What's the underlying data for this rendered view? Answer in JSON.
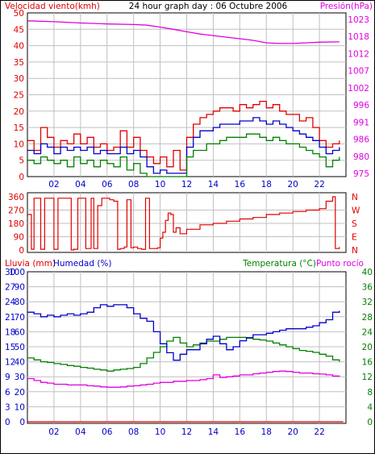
{
  "chart_data": [
    {
      "type": "line",
      "title": "24 hour graph day : 06 Octubre 2006",
      "ylabel_left": "Velocidad viento(kmh)",
      "ylabel_right": "Presión(hPa)",
      "x_ticks": [
        "02",
        "04",
        "06",
        "08",
        "10",
        "12",
        "14",
        "16",
        "18",
        "20",
        "22"
      ],
      "ylim_left": [
        0,
        50
      ],
      "ylim_right": [
        975,
        1027
      ],
      "y_ticks_left": [
        "0",
        "5",
        "10",
        "15",
        "20",
        "25",
        "30",
        "35",
        "40",
        "45",
        "50"
      ],
      "y_ticks_right": [
        "975",
        "980",
        "986",
        "991",
        "996",
        "1002",
        "1007",
        "1012",
        "1018",
        "1023"
      ],
      "grid": true,
      "colors": {
        "gust": "#e00000",
        "wind": "#0000c8",
        "min_wind": "#008000",
        "pressure": "#e000e0",
        "left_axis": "#e00000",
        "right_axis": "#e000e0"
      },
      "series": [
        {
          "name": "Presión(hPa)",
          "axis": "right",
          "x": [
            0,
            2,
            4,
            6,
            8,
            9,
            10,
            11,
            12,
            13,
            14,
            15,
            16,
            17,
            18,
            19,
            20,
            21,
            22,
            23.5
          ],
          "values": [
            1024.5,
            1024.2,
            1023.8,
            1023.5,
            1023.3,
            1023.1,
            1022.5,
            1021.8,
            1021.0,
            1020.3,
            1019.8,
            1019.3,
            1018.8,
            1018.3,
            1017.5,
            1017.3,
            1017.3,
            1017.5,
            1017.7,
            1017.8
          ]
        },
        {
          "name": "",
          "role": "gust",
          "axis": "left",
          "x": [
            0,
            0.5,
            1,
            1.5,
            2,
            2.5,
            3,
            3.5,
            4,
            4.5,
            5,
            5.5,
            6,
            6.5,
            7,
            7.5,
            8,
            8.5,
            9,
            9.5,
            10,
            10.5,
            11,
            11.5,
            12,
            12.5,
            13,
            13.5,
            14,
            14.5,
            15,
            15.5,
            16,
            16.5,
            17,
            17.5,
            18,
            18.5,
            19,
            19.5,
            20,
            20.5,
            21,
            21.5,
            22,
            22.5,
            23,
            23.5
          ],
          "values": [
            11,
            8,
            15,
            12,
            9,
            11,
            10,
            13,
            10,
            12,
            9,
            10,
            8,
            9,
            14,
            9,
            12,
            8,
            6,
            4,
            6,
            3,
            8,
            2,
            12,
            16,
            18,
            19,
            20,
            21,
            21,
            20,
            22,
            21,
            22,
            23,
            21,
            22,
            20,
            19,
            19,
            17,
            18,
            15,
            11,
            9,
            10,
            11
          ]
        },
        {
          "name": "",
          "role": "wind",
          "axis": "left",
          "x": [
            0,
            0.5,
            1,
            1.5,
            2,
            2.5,
            3,
            3.5,
            4,
            4.5,
            5,
            5.5,
            6,
            6.5,
            7,
            7.5,
            8,
            8.5,
            9,
            9.5,
            10,
            10.5,
            11,
            11.5,
            12,
            12.5,
            13,
            13.5,
            14,
            14.5,
            15,
            15.5,
            16,
            16.5,
            17,
            17.5,
            18,
            18.5,
            19,
            19.5,
            20,
            20.5,
            21,
            21.5,
            22,
            22.5,
            23,
            23.5
          ],
          "values": [
            8,
            7,
            10,
            9,
            7,
            9,
            8,
            9,
            8,
            9,
            7,
            8,
            7,
            7,
            9,
            7,
            8,
            6,
            3,
            1,
            2,
            1,
            1,
            1,
            9,
            12,
            14,
            14,
            15,
            16,
            16,
            16,
            17,
            17,
            18,
            17,
            16,
            17,
            16,
            15,
            14,
            13,
            12,
            11,
            9,
            7,
            8,
            9
          ]
        },
        {
          "name": "",
          "role": "min_wind",
          "axis": "left",
          "x": [
            0,
            0.5,
            1,
            1.5,
            2,
            2.5,
            3,
            3.5,
            4,
            4.5,
            5,
            5.5,
            6,
            6.5,
            7,
            7.5,
            8,
            8.5,
            9,
            9.5,
            10,
            10.5,
            11,
            11.5,
            12,
            12.5,
            13,
            13.5,
            14,
            14.5,
            15,
            15.5,
            16,
            16.5,
            17,
            17.5,
            18,
            18.5,
            19,
            19.5,
            20,
            20.5,
            21,
            21.5,
            22,
            22.5,
            23,
            23.5
          ],
          "values": [
            5,
            4,
            6,
            5,
            4,
            5,
            3,
            6,
            4,
            5,
            3,
            5,
            4,
            3,
            6,
            2,
            4,
            1,
            0,
            0,
            0,
            0,
            0,
            0,
            6,
            8,
            8,
            10,
            10,
            11,
            12,
            12,
            12,
            13,
            13,
            12,
            11,
            12,
            11,
            10,
            10,
            9,
            8,
            7,
            6,
            3,
            5,
            6
          ]
        }
      ]
    },
    {
      "type": "line",
      "ylim": [
        0,
        360
      ],
      "y_ticks": [
        "0",
        "90",
        "180",
        "270",
        "360"
      ],
      "y_ticks_right": [
        "N",
        "E",
        "S",
        "W",
        "N"
      ],
      "x_ticks": [
        "02",
        "04",
        "06",
        "08",
        "10",
        "12",
        "14",
        "16",
        "18",
        "20",
        "22"
      ],
      "colors": {
        "direction": "#e00000",
        "axis": "#e00000"
      },
      "series": [
        {
          "name": "",
          "role": "wind_direction",
          "x": [
            0,
            0.3,
            0.5,
            0.8,
            1.0,
            1.3,
            1.5,
            1.8,
            2.0,
            2.3,
            2.5,
            2.8,
            3.0,
            3.3,
            3.5,
            3.8,
            4.0,
            4.2,
            4.4,
            4.6,
            4.8,
            5.0,
            5.3,
            5.6,
            5.9,
            6.2,
            6.5,
            6.8,
            7.0,
            7.3,
            7.5,
            7.8,
            8.0,
            8.3,
            8.6,
            8.9,
            9.2,
            9.5,
            9.8,
            10.0,
            10.2,
            10.4,
            10.6,
            10.8,
            11.0,
            11.2,
            11.5,
            12.0,
            13.0,
            14.0,
            15.0,
            16.0,
            17.0,
            18.0,
            19.0,
            20.0,
            21.0,
            22.0,
            22.5,
            23.0,
            23.2,
            23.5
          ],
          "values": [
            240,
            5,
            350,
            350,
            5,
            350,
            350,
            350,
            5,
            350,
            350,
            350,
            350,
            0,
            5,
            350,
            350,
            350,
            10,
            10,
            350,
            10,
            300,
            350,
            350,
            340,
            330,
            5,
            10,
            20,
            340,
            15,
            20,
            10,
            5,
            350,
            10,
            10,
            15,
            80,
            120,
            200,
            250,
            240,
            120,
            150,
            110,
            140,
            170,
            180,
            195,
            210,
            220,
            240,
            250,
            260,
            270,
            280,
            330,
            360,
            10,
            20
          ]
        }
      ]
    },
    {
      "type": "line",
      "ylabel_left_1": "Lluvia (mm)",
      "ylabel_left_2": "Humedad (%)",
      "ylabel_right": "Temperatura (°C)",
      "ylabel_right_2": "Punto rocío",
      "x_ticks": [
        "02",
        "04",
        "06",
        "08",
        "10",
        "12",
        "14",
        "16",
        "18",
        "20",
        "22"
      ],
      "ylim_rain": [
        0,
        30
      ],
      "ylim_humidity": [
        0,
        100
      ],
      "ylim_temp": [
        0,
        40
      ],
      "y_ticks_rain": [
        "0",
        "3",
        "6",
        "9",
        "12",
        "15",
        "18",
        "21",
        "24",
        "27",
        "30"
      ],
      "y_ticks_humidity": [
        "0",
        "10",
        "20",
        "30",
        "40",
        "50",
        "60",
        "70",
        "80",
        "90",
        "100"
      ],
      "y_ticks_temp": [
        "0",
        "4",
        "8",
        "12",
        "16",
        "20",
        "24",
        "28",
        "32",
        "36",
        "40"
      ],
      "colors": {
        "rain": "#e00000",
        "humidity": "#0000c8",
        "temperature": "#008000",
        "dew_point": "#e000e0"
      },
      "series": [
        {
          "name": "Humedad (%)",
          "x": [
            0,
            0.5,
            1.0,
            1.5,
            2.0,
            2.5,
            3.0,
            3.5,
            4.0,
            4.5,
            5.0,
            5.5,
            6.0,
            6.5,
            7.0,
            7.5,
            8.0,
            8.5,
            9.0,
            9.5,
            10.0,
            10.5,
            11.0,
            11.5,
            12.0,
            12.5,
            13.0,
            13.5,
            14.0,
            14.5,
            15.0,
            15.5,
            16.0,
            16.5,
            17.0,
            17.5,
            18.0,
            18.5,
            19.0,
            19.5,
            20.0,
            20.5,
            21.0,
            21.5,
            22.0,
            22.5,
            23.0,
            23.5
          ],
          "values": [
            73,
            72,
            70,
            71,
            70,
            71,
            72,
            71,
            72,
            73,
            76,
            78,
            77,
            78,
            78,
            76,
            72,
            69,
            67,
            60,
            52,
            46,
            41,
            45,
            48,
            48,
            52,
            55,
            57,
            52,
            48,
            50,
            54,
            56,
            58,
            58,
            59,
            60,
            61,
            62,
            62,
            62,
            63,
            64,
            66,
            68,
            73,
            74
          ]
        },
        {
          "name": "Temperatura (°C)",
          "x": [
            0,
            0.5,
            1.0,
            1.5,
            2.0,
            2.5,
            3.0,
            3.5,
            4.0,
            4.5,
            5.0,
            5.5,
            6.0,
            6.5,
            7.0,
            7.5,
            8.0,
            8.5,
            9.0,
            9.5,
            10.0,
            10.5,
            11.0,
            11.5,
            12.0,
            12.5,
            13.0,
            13.5,
            14.0,
            14.5,
            15.0,
            15.5,
            16.0,
            16.5,
            17.0,
            17.5,
            18.0,
            18.5,
            19.0,
            19.5,
            20.0,
            20.5,
            21.0,
            21.5,
            22.0,
            22.5,
            23.0,
            23.5
          ],
          "values": [
            17,
            16.5,
            16,
            15.8,
            15.5,
            15.3,
            15,
            14.8,
            14.5,
            14.3,
            14,
            13.8,
            13.5,
            13.8,
            14,
            14.2,
            14.5,
            15.5,
            17,
            18.5,
            20,
            21.5,
            22.5,
            21,
            20,
            20.5,
            21,
            21.5,
            21.5,
            22,
            22.5,
            22.5,
            22.5,
            22.3,
            22,
            21.8,
            21.5,
            21,
            20.5,
            20,
            19.5,
            19,
            18.8,
            18.5,
            18,
            17.5,
            16.5,
            16
          ]
        },
        {
          "name": "Punto rocío",
          "x": [
            0,
            0.5,
            1.0,
            1.5,
            2.0,
            2.5,
            3.0,
            3.5,
            4.0,
            4.5,
            5.0,
            5.5,
            6.0,
            6.5,
            7.0,
            7.5,
            8.0,
            8.5,
            9.0,
            9.5,
            10.0,
            10.5,
            11.0,
            11.5,
            12.0,
            12.5,
            13.0,
            13.5,
            14.0,
            14.5,
            15.0,
            15.5,
            16.0,
            16.5,
            17.0,
            17.5,
            18.0,
            18.5,
            19.0,
            19.5,
            20.0,
            20.5,
            21.0,
            21.5,
            22.0,
            22.5,
            23.0,
            23.5
          ],
          "values": [
            11.5,
            11,
            10.5,
            10.3,
            10,
            10,
            9.8,
            9.8,
            9.8,
            9.6,
            9.5,
            9.3,
            9.2,
            9.2,
            9.3,
            9.5,
            9.6,
            9.8,
            10,
            10.3,
            10.5,
            10.5,
            10.8,
            10.8,
            11,
            11,
            11.2,
            11.5,
            12.5,
            11.8,
            12,
            12.2,
            12.5,
            12.5,
            12.8,
            13,
            13.2,
            13.4,
            13.5,
            13.4,
            13.2,
            13,
            13,
            12.8,
            12.7,
            12.5,
            12.2,
            12
          ]
        },
        {
          "name": "Lluvia (mm)",
          "x": [
            0,
            23.8
          ],
          "values": [
            0,
            0
          ]
        }
      ]
    }
  ]
}
